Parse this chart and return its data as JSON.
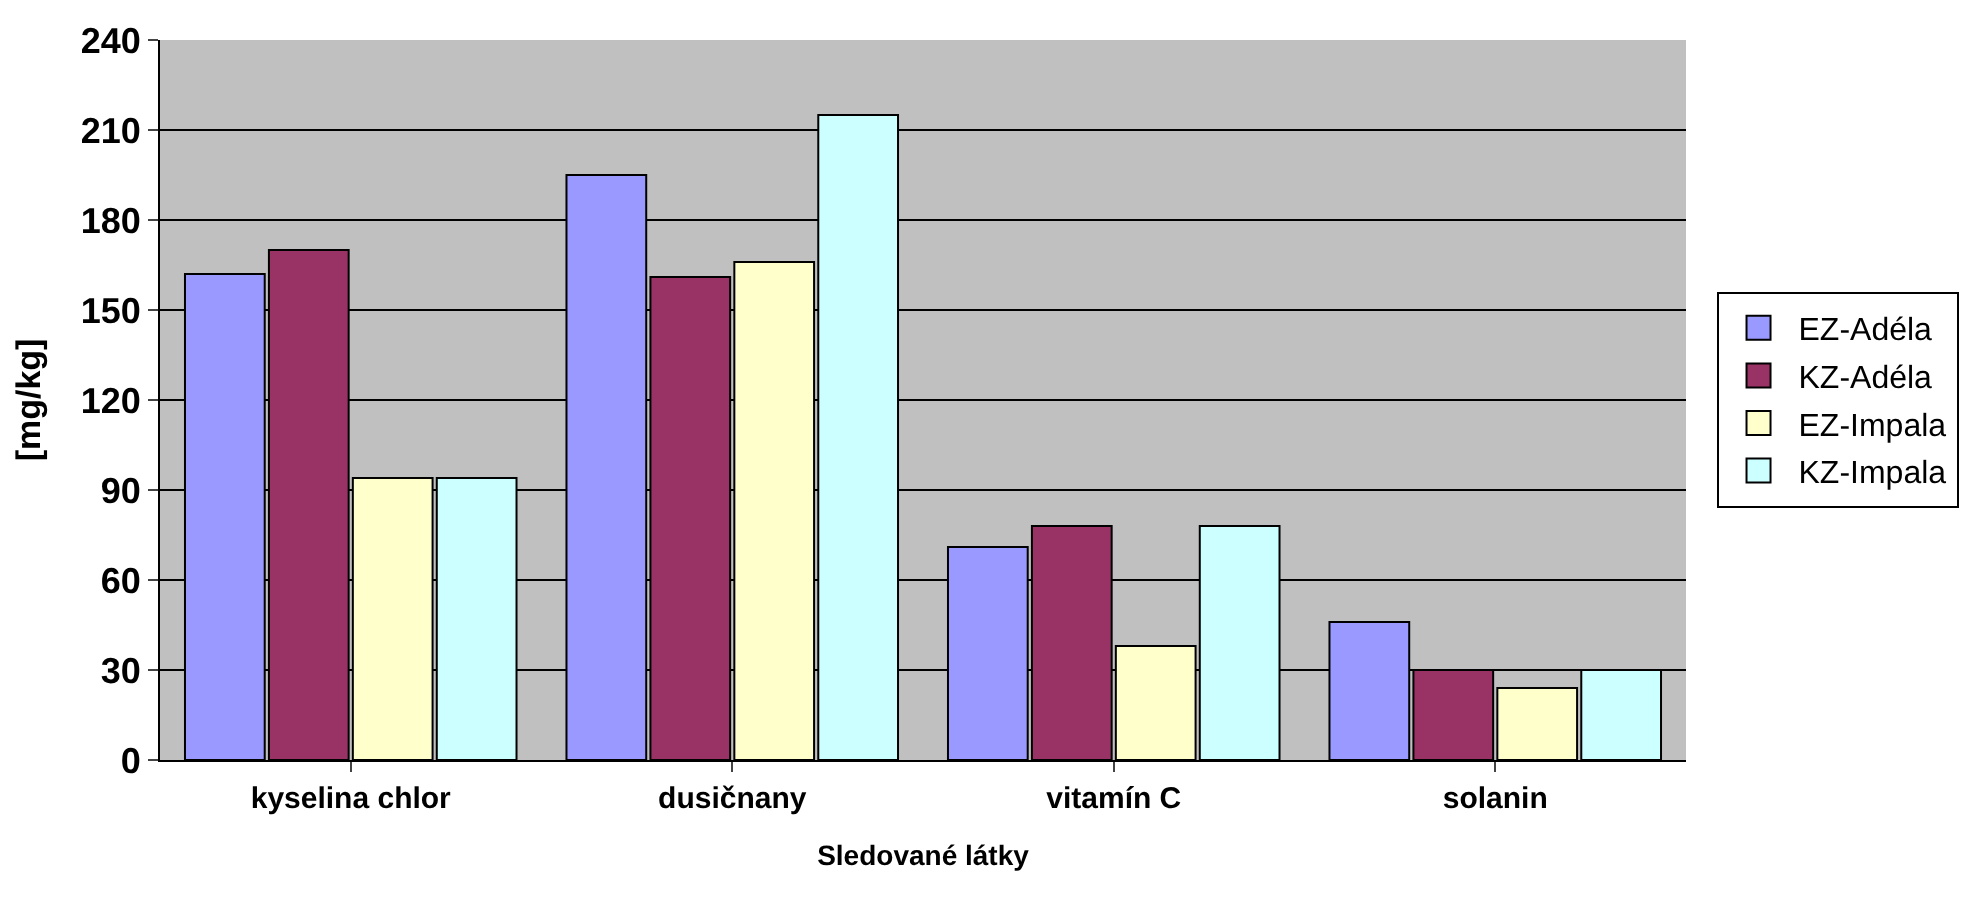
{
  "chart_data": {
    "type": "bar",
    "xlabel": "Sledované látky",
    "ylabel": "[mg/kg]",
    "categories": [
      "kyselina chlor",
      "dusičnany",
      "vitamín C",
      "solanin"
    ],
    "series": [
      {
        "name": "EZ-Adéla",
        "color": "#9999ff",
        "values": [
          162,
          195,
          71,
          46
        ]
      },
      {
        "name": "KZ-Adéla",
        "color": "#993366",
        "values": [
          170,
          161,
          78,
          30
        ]
      },
      {
        "name": "EZ-Impala",
        "color": "#ffffcc",
        "values": [
          94,
          166,
          38,
          24
        ]
      },
      {
        "name": "KZ-Impala",
        "color": "#ccffff",
        "values": [
          94,
          215,
          78,
          30
        ]
      }
    ],
    "ylim": [
      0,
      240
    ],
    "yticks": [
      0,
      30,
      60,
      90,
      120,
      150,
      180,
      210,
      240
    ],
    "grid": "y",
    "legend": "right"
  }
}
